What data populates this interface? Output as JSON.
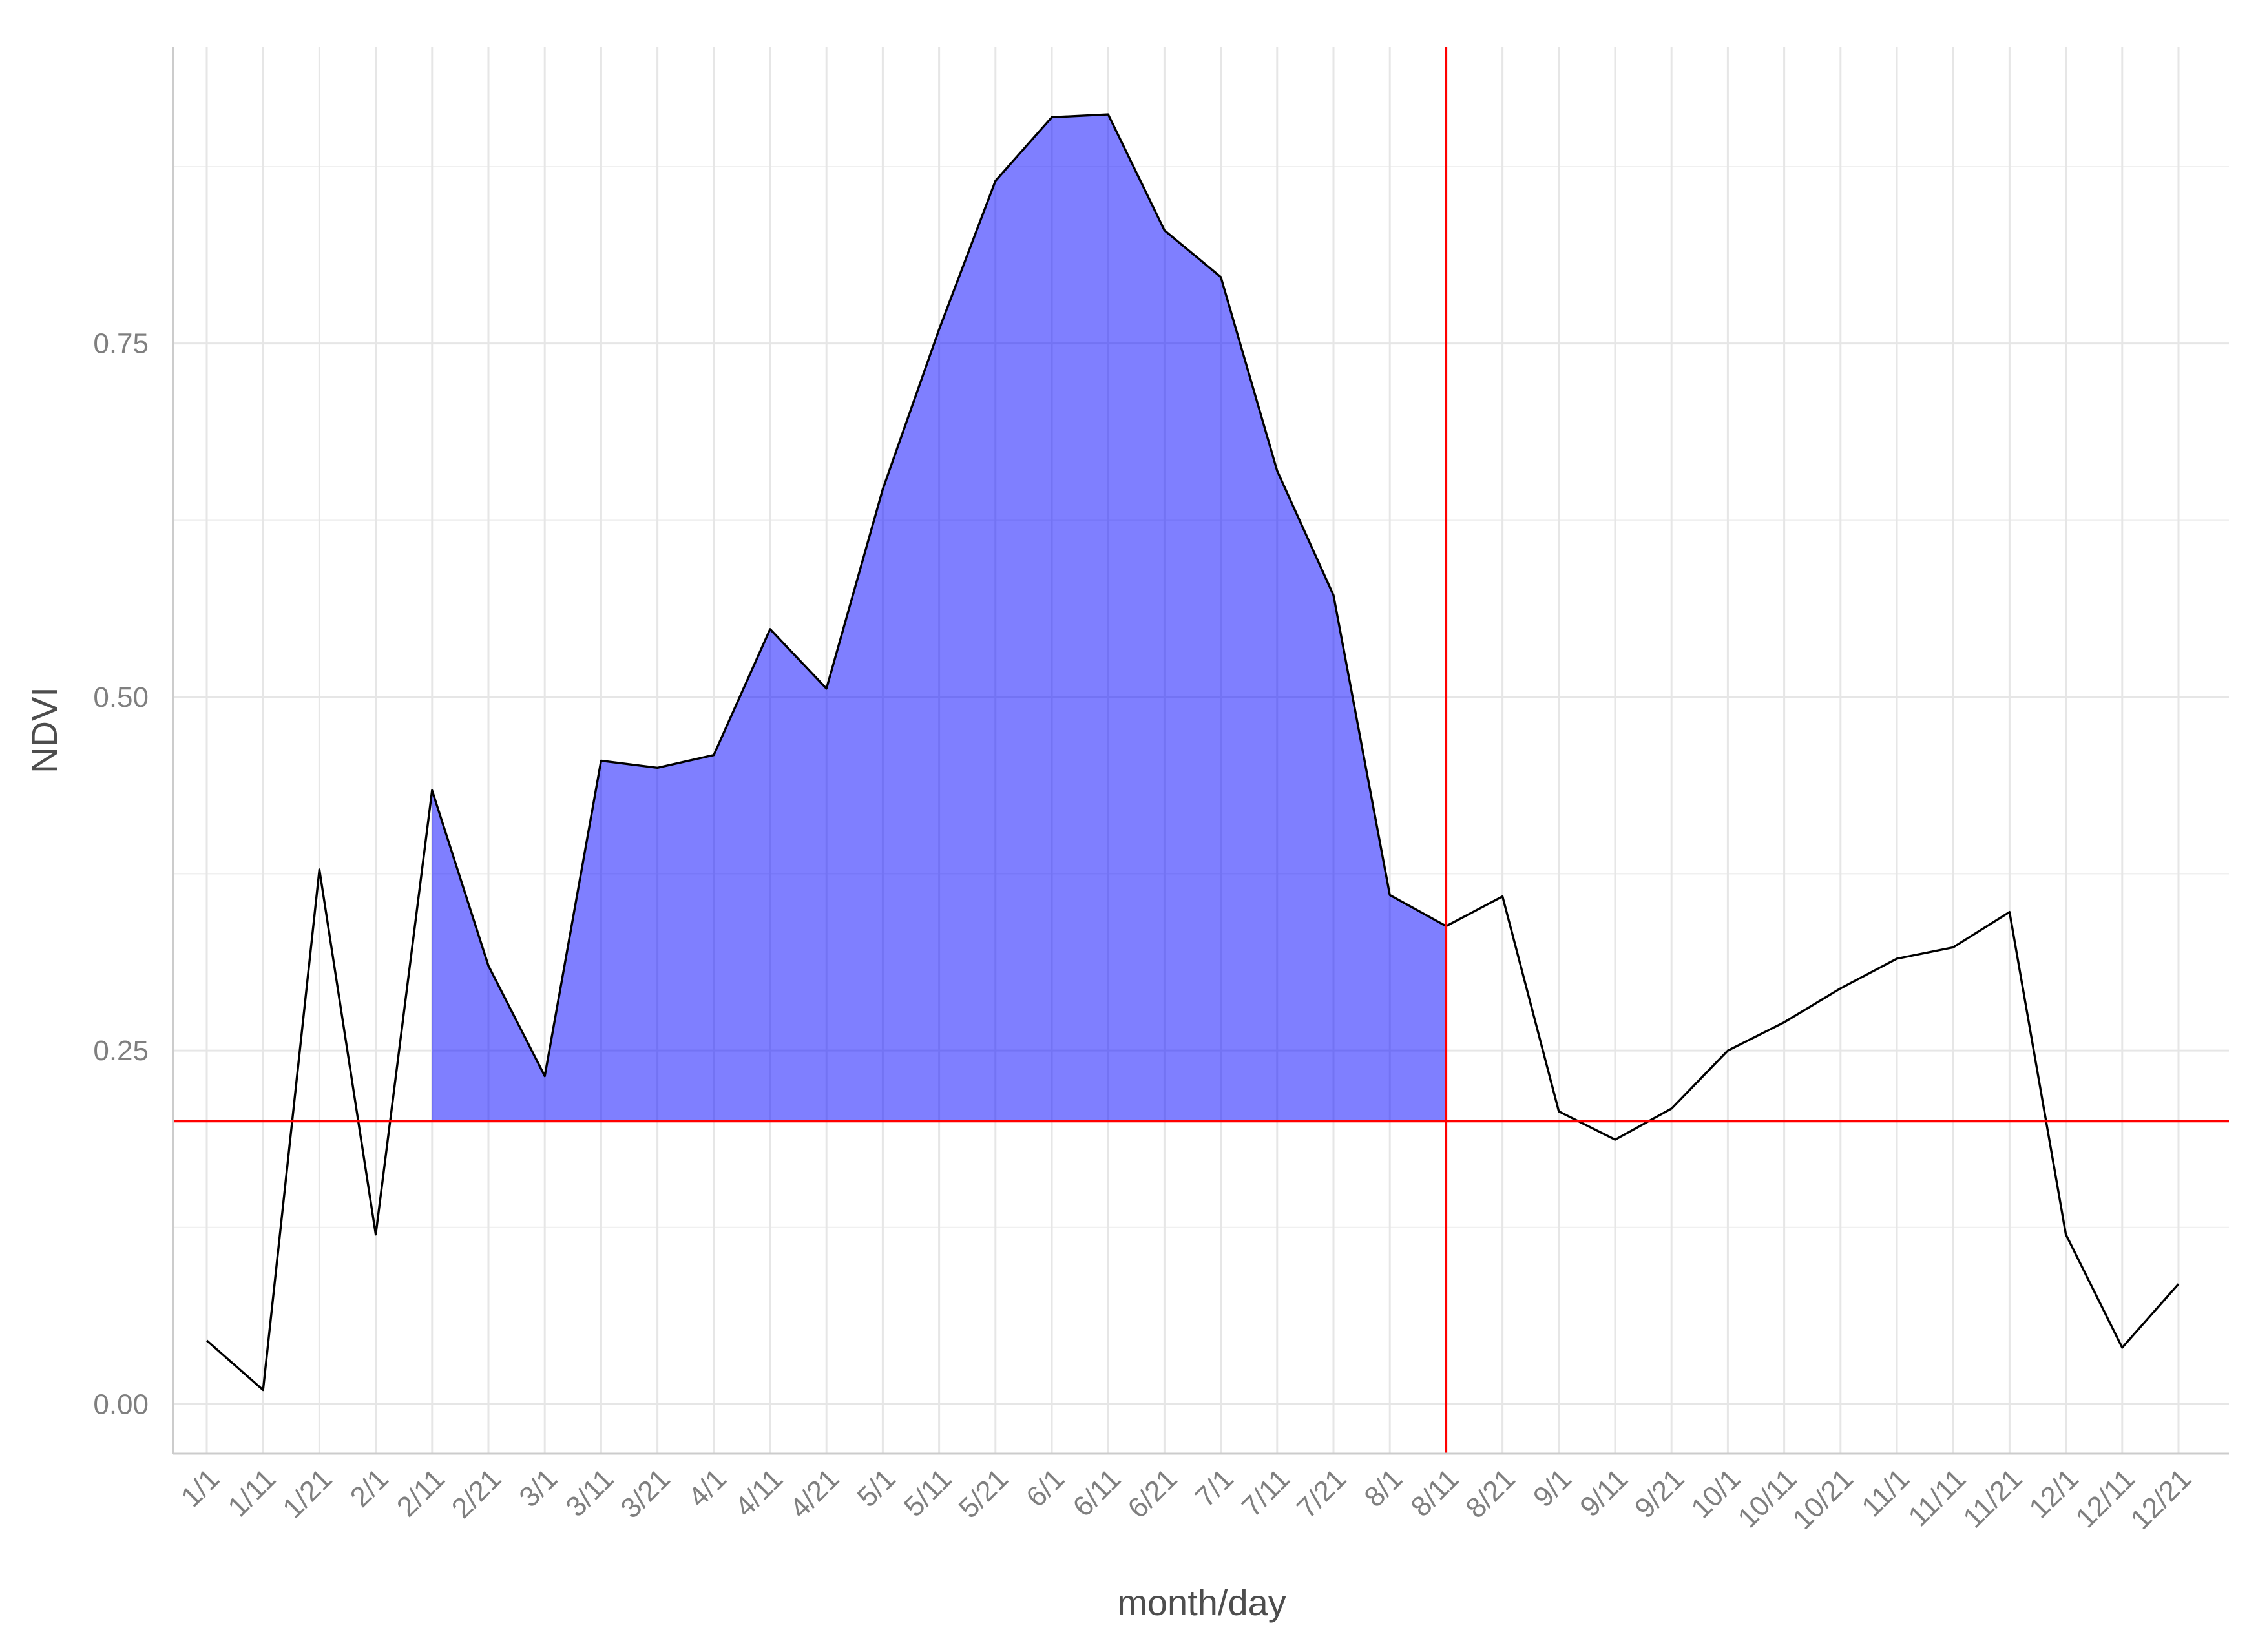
{
  "chart_data": {
    "type": "area",
    "xlabel": "month/day",
    "ylabel": "NDVI",
    "ylim": [
      -0.035,
      0.96
    ],
    "y_ticks": [
      0.0,
      0.25,
      0.5,
      0.75
    ],
    "y_tick_labels": [
      "0.00",
      "0.25",
      "0.50",
      "0.75"
    ],
    "grid": true,
    "legend": "none",
    "categories": [
      "1/1",
      "1/11",
      "1/21",
      "2/1",
      "2/11",
      "2/21",
      "3/1",
      "3/11",
      "3/21",
      "4/1",
      "4/11",
      "4/21",
      "5/1",
      "5/11",
      "5/21",
      "6/1",
      "6/11",
      "6/21",
      "7/1",
      "7/11",
      "7/21",
      "8/1",
      "8/11",
      "8/21",
      "9/1",
      "9/11",
      "9/21",
      "10/1",
      "10/11",
      "10/21",
      "11/1",
      "11/11",
      "11/21",
      "12/1",
      "12/11",
      "12/21"
    ],
    "series": [
      {
        "values": [
          0.045,
          0.01,
          0.378,
          0.12,
          0.434,
          0.31,
          0.232,
          0.455,
          0.45,
          0.459,
          0.548,
          0.506,
          0.647,
          0.76,
          0.865,
          0.91,
          0.912,
          0.83,
          0.797,
          0.66,
          0.572,
          0.36,
          0.338,
          0.359,
          0.207,
          0.187,
          0.209,
          0.25,
          0.27,
          0.294,
          0.315,
          0.323,
          0.348,
          0.12,
          0.04,
          0.085
        ],
        "color": "#000000"
      }
    ],
    "shaded_region": {
      "from": "2/11",
      "to": "8/11",
      "baseline": 0.2,
      "color": "#0000ff",
      "opacity": 0.5
    },
    "reference_lines": {
      "horizontal_y": 0.2,
      "vertical_x": "8/11",
      "color": "#ff0000"
    }
  }
}
